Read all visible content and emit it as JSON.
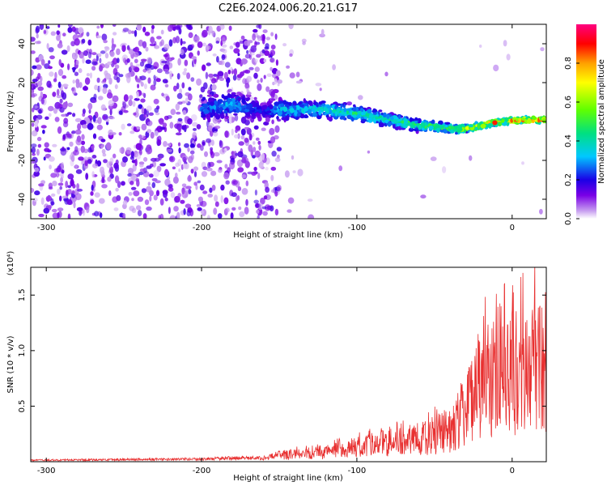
{
  "title": "C2E6.2024.006.20.21.G17",
  "chart_data": [
    {
      "type": "heatmap",
      "name": "spectrogram",
      "xlabel": "Height of straight line (km)",
      "ylabel": "Frequency (Hz)",
      "xlim": [
        -310,
        22
      ],
      "ylim": [
        -50,
        50
      ],
      "xticks": [
        -300,
        -200,
        -100,
        0
      ],
      "yticks": [
        -40,
        -20,
        0,
        20,
        40
      ],
      "colorbar": {
        "label": "Normalized spectral amplitude",
        "range": [
          0,
          1
        ],
        "ticks": [
          0.0,
          0.2,
          0.4,
          0.6,
          0.8
        ],
        "tick_labels": [
          "0.0",
          "0.2",
          "0.4",
          "0.6",
          "0.8"
        ],
        "colormap": [
          "#ffffff",
          "#c8a0f0",
          "#7a00e6",
          "#1a00e6",
          "#00c8ff",
          "#00e080",
          "#60ff00",
          "#ffff00",
          "#ffa000",
          "#ff0000",
          "#ff0080"
        ]
      },
      "ridge": {
        "description_x": [
          -195,
          -180,
          -160,
          -150,
          -120,
          -100,
          -80,
          -60,
          -45,
          -35,
          -25,
          -15,
          0,
          22
        ],
        "frequency_hz": [
          7,
          9,
          5,
          6,
          6,
          4,
          1,
          -2,
          -3,
          -4,
          -3,
          -1,
          0.5,
          1
        ],
        "amplitude": [
          0.3,
          0.35,
          0.2,
          0.35,
          0.4,
          0.45,
          0.45,
          0.5,
          0.55,
          0.6,
          0.7,
          0.8,
          0.85,
          0.9
        ]
      }
    },
    {
      "type": "line",
      "name": "snr",
      "xlabel": "Height of straight line (km)",
      "ylabel": "SNR (10 * v/v)",
      "y_multiplier": "(x10⁴)",
      "xlim": [
        -310,
        22
      ],
      "ylim": [
        0,
        1.75
      ],
      "xticks": [
        -300,
        -200,
        -100,
        0
      ],
      "yticks": [
        0.5,
        1.0,
        1.5
      ],
      "ytick_labels": [
        "0.5",
        "1.0",
        "1.5"
      ],
      "color": "#e83030",
      "envelope": {
        "x": [
          -310,
          -250,
          -200,
          -180,
          -160,
          -150,
          -120,
          -100,
          -80,
          -60,
          -45,
          -35,
          -25,
          -15,
          -5,
          5,
          15,
          22
        ],
        "y": [
          0.02,
          0.03,
          0.035,
          0.05,
          0.05,
          0.1,
          0.15,
          0.22,
          0.3,
          0.35,
          0.45,
          0.65,
          1.0,
          1.25,
          1.35,
          1.4,
          1.5,
          1.55
        ]
      }
    }
  ]
}
